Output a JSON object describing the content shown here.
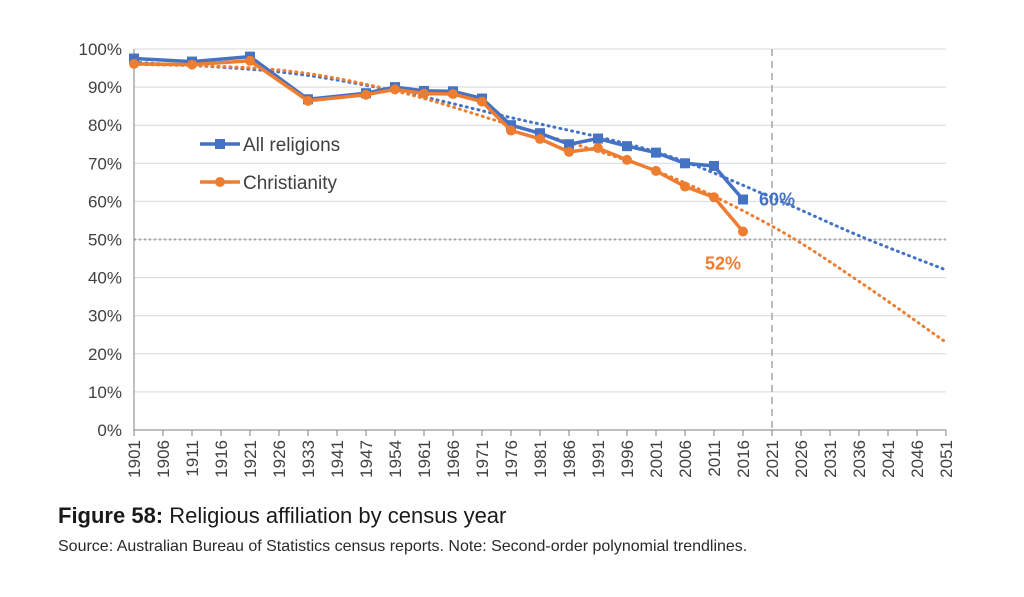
{
  "chart_data": {
    "type": "line",
    "x": [
      "1901",
      "1906",
      "1911",
      "1916",
      "1921",
      "1926",
      "1933",
      "1941",
      "1947",
      "1954",
      "1961",
      "1966",
      "1971",
      "1976",
      "1981",
      "1986",
      "1991",
      "1996",
      "2001",
      "2006",
      "2011",
      "2016",
      "2021",
      "2026",
      "2031",
      "2036",
      "2041",
      "2046",
      "2051"
    ],
    "yticks": [
      "0%",
      "10%",
      "20%",
      "30%",
      "40%",
      "50%",
      "60%",
      "70%",
      "80%",
      "90%",
      "100%"
    ],
    "ylim": [
      0,
      100
    ],
    "reference_line_y": 50,
    "reference_line_x": "2021",
    "grid": true,
    "legend_position": "left",
    "series": [
      {
        "name": "All religions",
        "color": "#4472C4",
        "marker": "square",
        "points": [
          [
            "1901",
            97.5
          ],
          [
            "1911",
            96.7
          ],
          [
            "1921",
            98.0
          ],
          [
            "1933",
            86.8
          ],
          [
            "1947",
            88.4
          ],
          [
            "1954",
            90.0
          ],
          [
            "1961",
            89.0
          ],
          [
            "1966",
            88.9
          ],
          [
            "1971",
            87.0
          ],
          [
            "1976",
            80.0
          ],
          [
            "1981",
            77.9
          ],
          [
            "1986",
            75.0
          ],
          [
            "1991",
            76.5
          ],
          [
            "1996",
            74.5
          ],
          [
            "2001",
            72.8
          ],
          [
            "2006",
            70.0
          ],
          [
            "2011",
            69.3
          ],
          [
            "2016",
            60.5
          ]
        ],
        "end_label": "60%",
        "trendline": [
          [
            "1901",
            96.5
          ],
          [
            "1926",
            94.0
          ],
          [
            "1954",
            89.0
          ],
          [
            "1976",
            82.0
          ],
          [
            "2001",
            73.0
          ],
          [
            "2021",
            61.0
          ],
          [
            "2036",
            51.0
          ],
          [
            "2051",
            42.0
          ]
        ]
      },
      {
        "name": "Christianity",
        "color": "#ED7D31",
        "marker": "circle",
        "points": [
          [
            "1901",
            96.1
          ],
          [
            "1911",
            95.9
          ],
          [
            "1921",
            96.9
          ],
          [
            "1933",
            86.4
          ],
          [
            "1947",
            88.0
          ],
          [
            "1954",
            89.4
          ],
          [
            "1961",
            88.3
          ],
          [
            "1966",
            88.2
          ],
          [
            "1971",
            86.2
          ],
          [
            "1976",
            78.6
          ],
          [
            "1981",
            76.4
          ],
          [
            "1986",
            73.0
          ],
          [
            "1991",
            74.0
          ],
          [
            "1996",
            70.9
          ],
          [
            "2001",
            68.0
          ],
          [
            "2006",
            63.9
          ],
          [
            "2011",
            61.1
          ],
          [
            "2016",
            52.1
          ]
        ],
        "end_label": "52%",
        "trendline": [
          [
            "1901",
            96.0
          ],
          [
            "1926",
            94.5
          ],
          [
            "1954",
            89.0
          ],
          [
            "1976",
            80.0
          ],
          [
            "2001",
            68.0
          ],
          [
            "2021",
            53.5
          ],
          [
            "2036",
            39.0
          ],
          [
            "2051",
            23.0
          ]
        ]
      }
    ]
  },
  "caption": {
    "figure_number": "Figure 58:",
    "title": " Religious affiliation by census year",
    "source": "Source: Australian Bureau of Statistics census reports. Note: Second-order polynomial trendlines."
  },
  "colors": {
    "grid": "#d9d9d9",
    "axis": "#7f7f7f",
    "reference": "#a6a6a6"
  }
}
